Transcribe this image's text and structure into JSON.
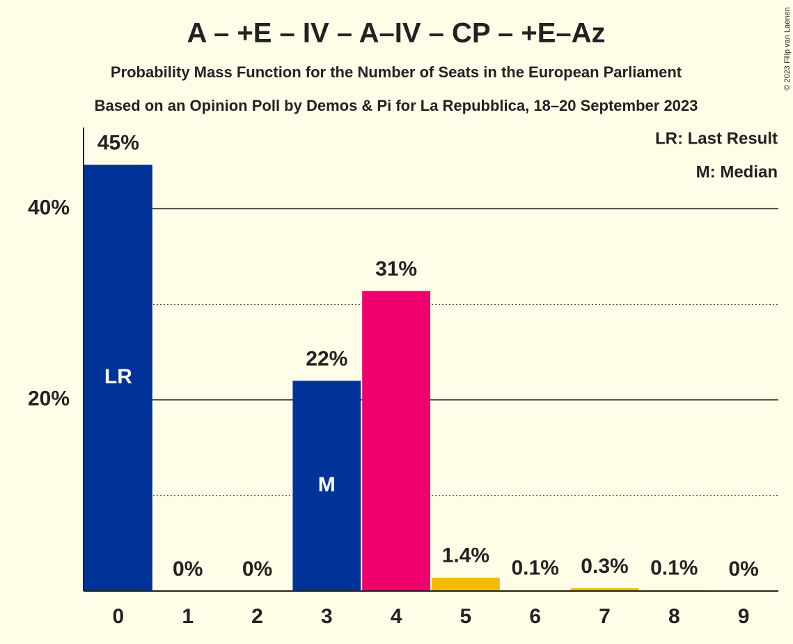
{
  "chart_data": {
    "type": "bar",
    "title": "A – +E – IV – A–IV – CP – +E–Az",
    "subtitle": "Probability Mass Function for the Number of Seats in the European Parliament",
    "subtitle2": "Based on an Opinion Poll by Demos & Pi for La Repubblica, 18–20 September 2023",
    "copyright": "© 2023 Filip van Laenen",
    "categories": [
      "0",
      "1",
      "2",
      "3",
      "4",
      "5",
      "6",
      "7",
      "8",
      "9"
    ],
    "values": [
      44.6,
      0,
      0,
      22,
      31.4,
      1.4,
      0.1,
      0.3,
      0.1,
      0
    ],
    "value_labels": [
      "45%",
      "0%",
      "0%",
      "22%",
      "31%",
      "1.4%",
      "0.1%",
      "0.3%",
      "0.1%",
      "0%"
    ],
    "colors": [
      "#003399",
      "#003399",
      "#003399",
      "#003399",
      "#f0006c",
      "#f5bb00",
      "#f5bb00",
      "#f5bb00",
      "#f5bb00",
      "#f5bb00"
    ],
    "markers": [
      {
        "index": 0,
        "label": "LR"
      },
      {
        "index": 3,
        "label": "M"
      }
    ],
    "legend": [
      "LR: Last Result",
      "M: Median"
    ],
    "ylim": [
      0,
      48.5
    ],
    "yticks": [
      {
        "value": 20,
        "label": "20%"
      },
      {
        "value": 40,
        "label": "40%"
      }
    ],
    "minor_yticks": [
      10,
      30
    ],
    "grid": true
  }
}
